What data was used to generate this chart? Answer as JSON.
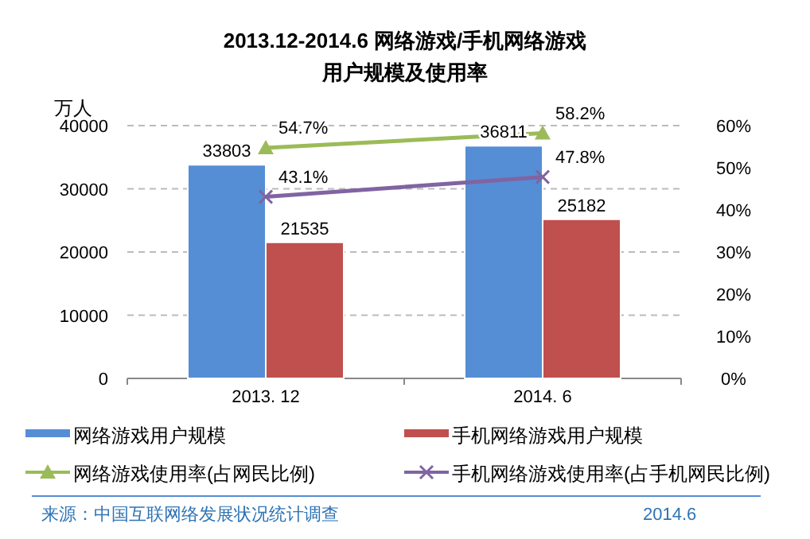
{
  "chart_data": {
    "type": "bar",
    "title": "2013.12-2014.6 网络游戏/手机网络游戏",
    "subtitle": "用户规模及使用率",
    "ylabel": "万人",
    "categories": [
      "2013. 12",
      "2014. 6"
    ],
    "series": [
      {
        "name": "网络游戏用户规模",
        "color": "#558ed5",
        "values": [
          33803,
          36811
        ],
        "value_labels": [
          "33803",
          "36811"
        ]
      },
      {
        "name": "手机网络游戏用户规模",
        "color": "#c0504d",
        "values": [
          21535,
          25182
        ],
        "value_labels": [
          "21535",
          "25182"
        ]
      },
      {
        "name": "网络游戏使用率(占网民比例)",
        "type": "line",
        "axis": "y2",
        "marker": "triangle",
        "color": "#9bbb59",
        "values": [
          54.7,
          58.2
        ],
        "value_labels": [
          "54.7%",
          "58.2%"
        ]
      },
      {
        "name": "手机网络游戏使用率(占手机网民比例)",
        "type": "line",
        "axis": "y2",
        "marker": "cross",
        "color": "#8064a2",
        "values": [
          43.1,
          47.8
        ],
        "value_labels": [
          "43.1%",
          "47.8%"
        ]
      }
    ],
    "ylim": [
      0,
      40000
    ],
    "yticks": [
      0,
      10000,
      20000,
      30000,
      40000
    ],
    "y2lim": [
      0,
      60
    ],
    "y2ticks": [
      {
        "value": 0,
        "label": "0%"
      },
      {
        "value": 10,
        "label": "10%"
      },
      {
        "value": 20,
        "label": "20%"
      },
      {
        "value": 30,
        "label": "30%"
      },
      {
        "value": 40,
        "label": "40%"
      },
      {
        "value": 50,
        "label": "50%"
      },
      {
        "value": 60,
        "label": "60%"
      }
    ],
    "grid": "y",
    "legend": "bottom",
    "annotations": [
      "来源：中国互联网络发展状况统计调查",
      "2014.6"
    ]
  }
}
